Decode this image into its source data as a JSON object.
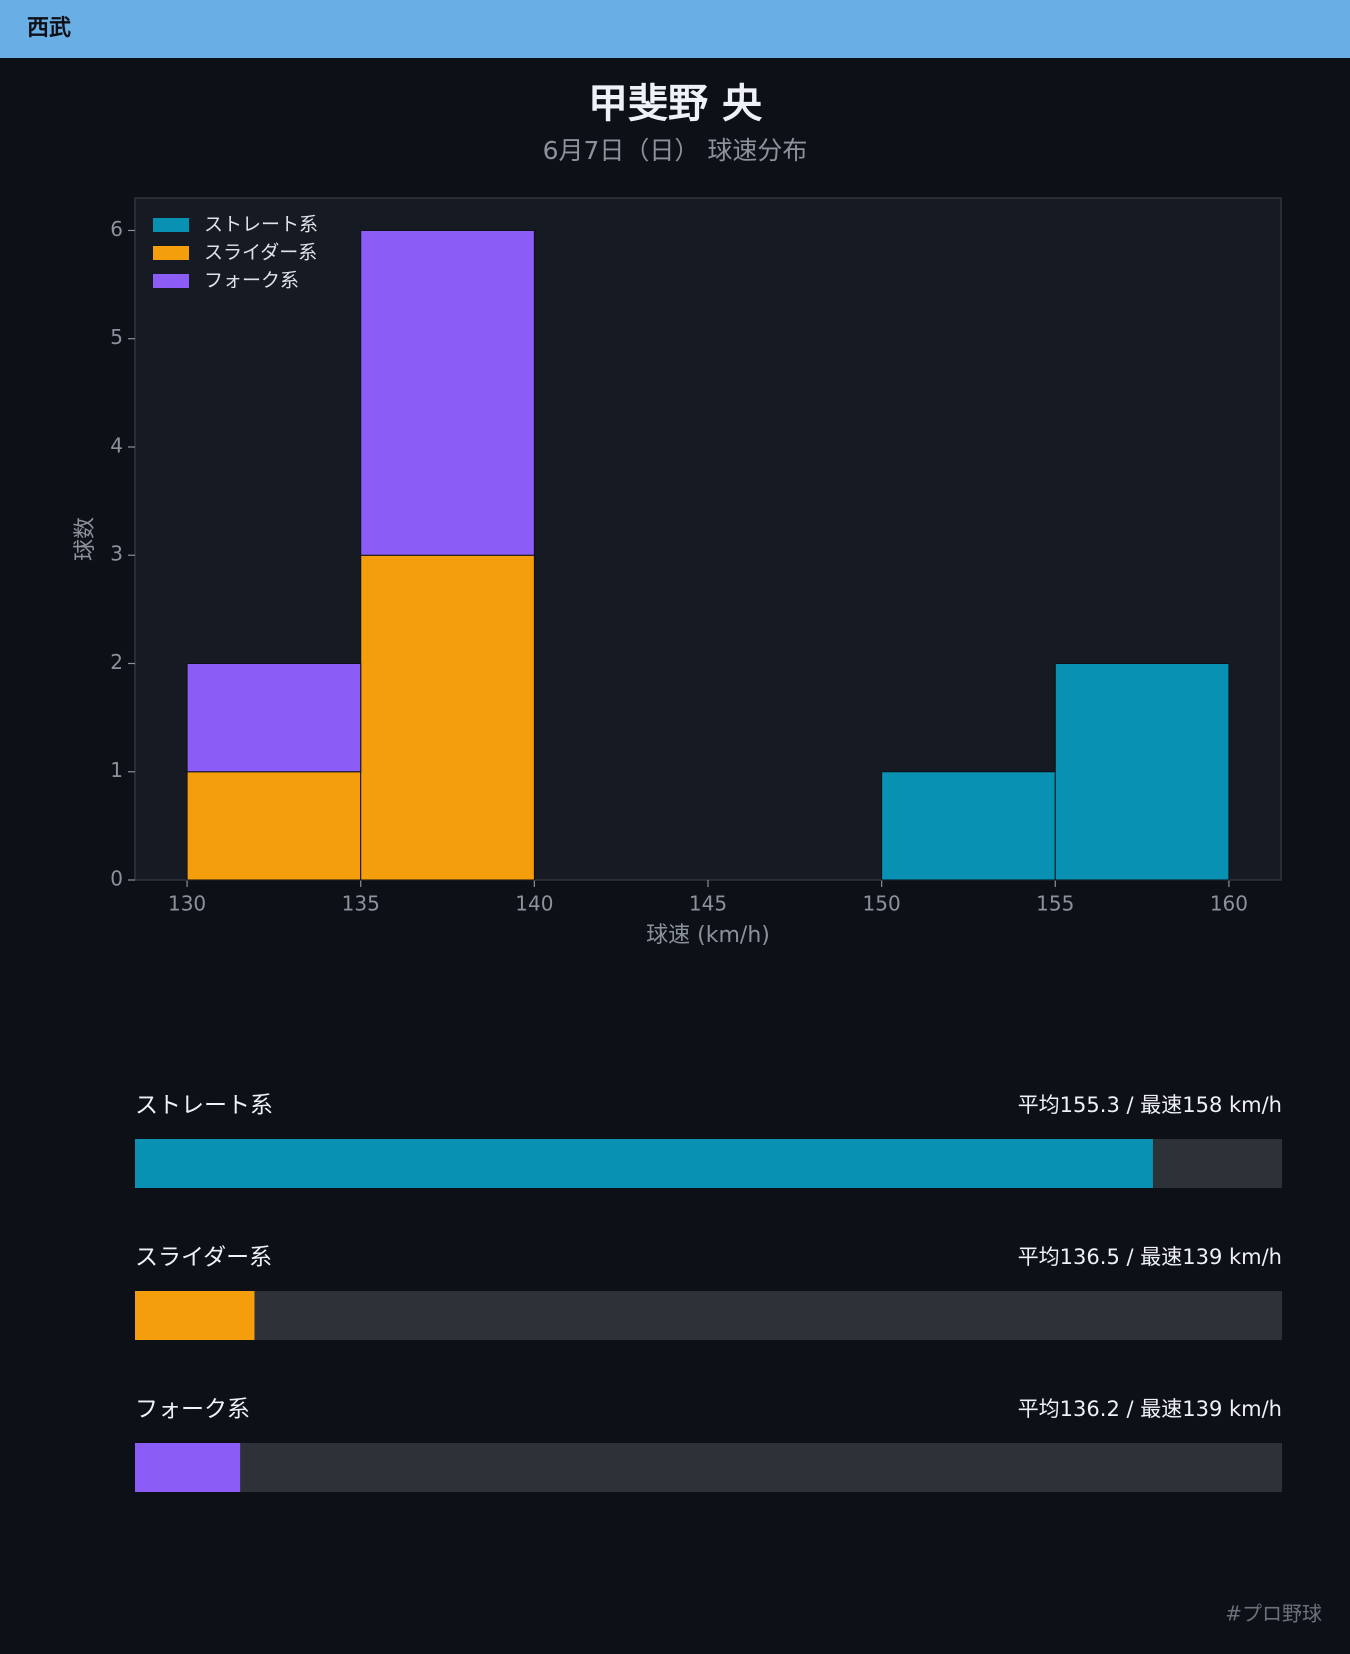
{
  "header": {
    "team": "西武"
  },
  "chart_data": {
    "type": "histogram",
    "title": "甲斐野 央",
    "subtitle": "6月7日（日） 球速分布",
    "x_label": "球速 (km/h)",
    "y_label": "球数",
    "bins": [
      130,
      135,
      140,
      145,
      150,
      155,
      160
    ],
    "series": [
      {
        "name": "ストレート系",
        "color": "#0891b2",
        "values": [
          0,
          0,
          0,
          0,
          1,
          2
        ]
      },
      {
        "name": "スライダー系",
        "color": "#f59e0b",
        "values": [
          1,
          3,
          0,
          0,
          0,
          0
        ]
      },
      {
        "name": "フォーク系",
        "color": "#8b5cf6",
        "values": [
          1,
          3,
          0,
          0,
          0,
          0
        ]
      }
    ],
    "stacked": true,
    "xlim": [
      128.5,
      161.5
    ],
    "xticks": [
      130,
      135,
      140,
      145,
      150,
      155,
      160
    ],
    "ylim": [
      0,
      6.3
    ],
    "yticks": [
      0,
      1,
      2,
      3,
      4,
      5,
      6
    ],
    "legend": "upper-left"
  },
  "speed_bars": {
    "bar_lim": [
      134,
      158
    ],
    "rows": [
      {
        "name": "ストレート系",
        "color": "#0891b2",
        "avg": 155.3,
        "max": 158,
        "summary": "平均155.3 / 最速158 km/h"
      },
      {
        "name": "スライダー系",
        "color": "#f59e0b",
        "avg": 136.5,
        "max": 139,
        "summary": "平均136.5 / 最速139 km/h"
      },
      {
        "name": "フォーク系",
        "color": "#8b5cf6",
        "avg": 136.2,
        "max": 139,
        "summary": "平均136.2 / 最速139 km/h"
      }
    ]
  },
  "footer": {
    "tag": "#プロ野球"
  }
}
